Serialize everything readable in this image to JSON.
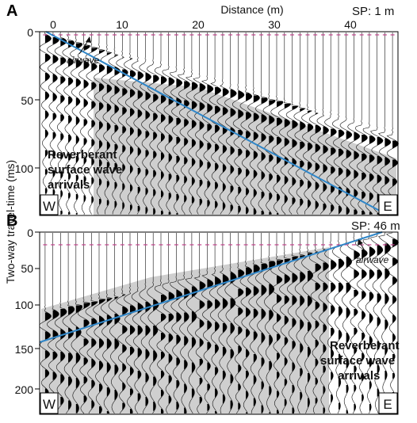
{
  "top_axis": {
    "title": "Distance (m)",
    "ticks": [
      "0",
      "10",
      "20",
      "30",
      "40"
    ]
  },
  "ylabel": "Two-way travel-time (ms)",
  "panels": [
    {
      "letter": "A",
      "shot_point": "SP: 1 m",
      "y_ticks": [
        "0",
        "50",
        "100"
      ],
      "airwave_label": "airwave",
      "annotation": [
        "Reverberant",
        "surface wave",
        "arrivals"
      ],
      "corner_left": "W",
      "corner_right": "E",
      "line_color": "#2f86c8",
      "shade_color": "#cfcfcf",
      "pick_color": "#c0408a"
    },
    {
      "letter": "B",
      "shot_point": "SP: 46 m",
      "y_ticks": [
        "0",
        "50",
        "100",
        "150",
        "200"
      ],
      "airwave_label": "airwave",
      "annotation": [
        "Reverberant",
        "surface wave",
        "arrivals"
      ],
      "corner_left": "W",
      "corner_right": "E",
      "line_color": "#2f86c8",
      "shade_color": "#cfcfcf",
      "pick_color": "#c0408a"
    }
  ]
}
